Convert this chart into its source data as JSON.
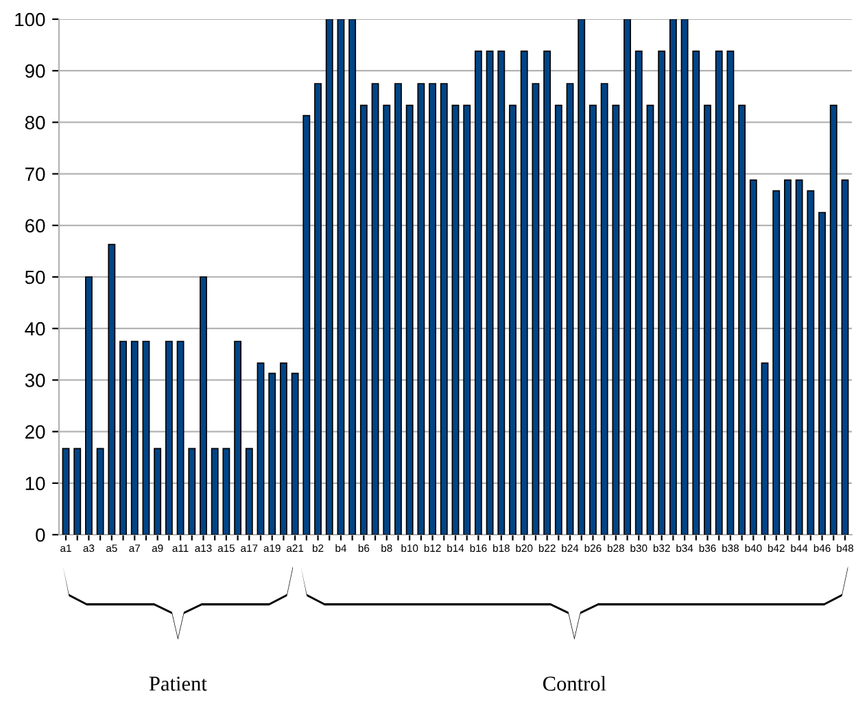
{
  "chart_data": {
    "type": "bar",
    "categories": [
      "a1",
      null,
      "a3",
      null,
      "a5",
      null,
      "a7",
      null,
      "a9",
      null,
      "a11",
      null,
      "a13",
      null,
      "a15",
      null,
      "a17",
      null,
      "a19",
      null,
      "a21",
      null,
      "b2",
      null,
      "b4",
      null,
      "b6",
      null,
      "b8",
      null,
      "b10",
      null,
      "b12",
      null,
      "b14",
      null,
      "b16",
      null,
      "b18",
      null,
      "b20",
      null,
      "b22",
      null,
      "b24",
      null,
      "b26",
      null,
      "b28",
      null,
      "b30",
      null,
      "b32",
      null,
      "b34",
      null,
      "b36",
      null,
      "b38",
      null,
      "b40",
      null,
      "b42",
      null,
      "b44",
      null,
      "b46",
      null,
      "b48"
    ],
    "values": [
      16.7,
      16.7,
      50,
      16.7,
      56.3,
      37.5,
      37.5,
      37.5,
      16.7,
      37.5,
      37.5,
      16.7,
      50,
      16.7,
      16.7,
      37.5,
      16.7,
      33.3,
      31.3,
      33.3,
      31.3,
      81.3,
      87.5,
      100,
      100,
      100,
      83.3,
      87.5,
      83.3,
      87.5,
      83.3,
      87.5,
      87.5,
      87.5,
      83.3,
      83.3,
      93.8,
      93.8,
      93.8,
      83.3,
      93.8,
      87.5,
      93.8,
      83.3,
      87.5,
      100,
      83.3,
      87.5,
      83.3,
      100,
      93.8,
      83.3,
      93.8,
      100,
      100,
      93.8,
      83.3,
      93.8,
      93.8,
      83.3,
      68.8,
      33.3,
      66.7,
      68.8,
      68.8,
      66.7,
      62.5,
      83.3,
      68.8
    ],
    "color": "#004586",
    "ylim": [
      0,
      100
    ],
    "yticks": [
      0,
      10,
      20,
      30,
      40,
      50,
      60,
      70,
      80,
      90,
      100
    ],
    "grid": "y",
    "annotations": [
      "Patient",
      "Control"
    ]
  }
}
